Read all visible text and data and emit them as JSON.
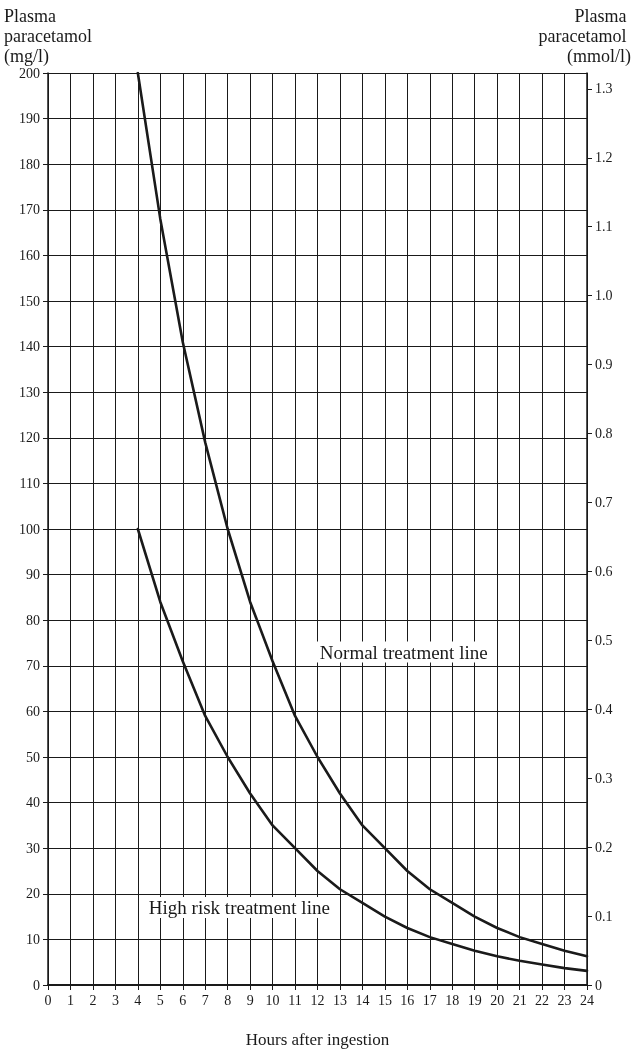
{
  "chart_data": {
    "type": "line",
    "xlabel": "Hours after ingestion",
    "ylabel": "Plasma paracetamol (mg/l)",
    "y2label": "Plasma paracetamol (mmol/l)",
    "x": [
      4,
      5,
      6,
      7,
      8,
      9,
      10,
      11,
      12,
      13,
      14,
      15,
      16,
      17,
      18,
      19,
      20,
      21,
      22,
      23,
      24
    ],
    "series": [
      {
        "color": "#1a1a1a",
        "values": [
          200,
          168,
          141,
          119,
          100,
          84,
          71,
          59,
          50,
          42,
          35,
          30,
          25,
          21,
          18,
          15,
          12.5,
          10.5,
          9,
          7.5,
          6.3
        ]
      },
      {
        "color": "#1a1a1a",
        "values": [
          100,
          84,
          71,
          59,
          50,
          42,
          35,
          30,
          25,
          21,
          18,
          15,
          12.5,
          10.5,
          9,
          7.5,
          6.3,
          5.3,
          4.5,
          3.7,
          3.1
        ]
      }
    ],
    "annotations": [
      "Normal treatment line",
      "High risk treatment line"
    ],
    "xlim": [
      0,
      24
    ],
    "xticks": [
      0,
      1,
      2,
      3,
      4,
      5,
      6,
      7,
      8,
      9,
      10,
      11,
      12,
      13,
      14,
      15,
      16,
      17,
      18,
      19,
      20,
      21,
      22,
      23,
      24
    ],
    "ylim": [
      0,
      200
    ],
    "yticks": [
      0,
      10,
      20,
      30,
      40,
      50,
      60,
      70,
      80,
      90,
      100,
      110,
      120,
      130,
      140,
      150,
      160,
      170,
      180,
      190,
      200
    ],
    "y2lim": [
      0,
      1.323
    ],
    "y2ticks": [
      0,
      0.1,
      0.2,
      0.3,
      0.4,
      0.5,
      0.6,
      0.7,
      0.8,
      0.9,
      {
        "value": 1,
        "label": "1.0"
      },
      1.1,
      1.2,
      1.3
    ],
    "grid": true,
    "marker": "none",
    "line_style": "solid"
  }
}
